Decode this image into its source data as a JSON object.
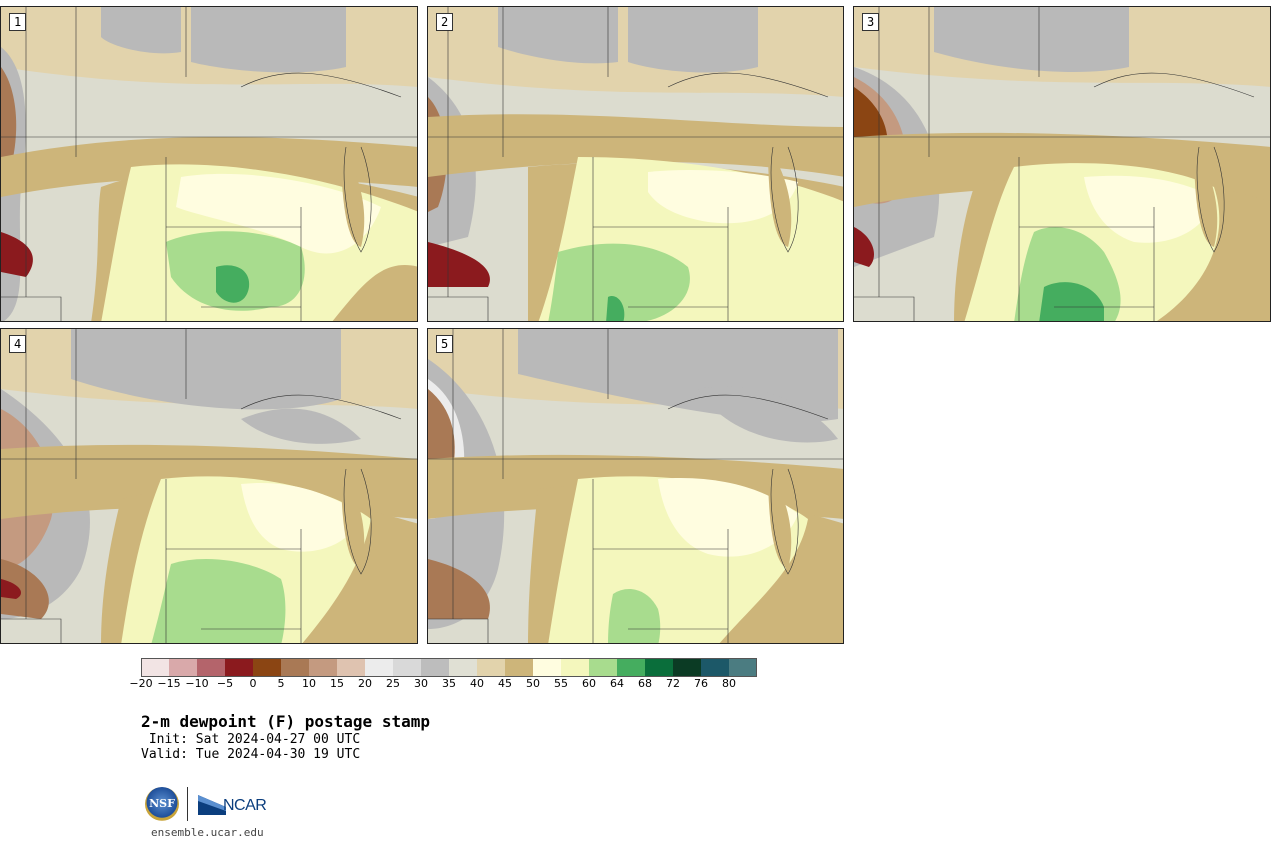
{
  "panels": [
    {
      "label": "1"
    },
    {
      "label": "2"
    },
    {
      "label": "3"
    },
    {
      "label": "4"
    },
    {
      "label": "5"
    }
  ],
  "colorbar": {
    "ticks": [
      "−20",
      "−15",
      "−10",
      "−5",
      "0",
      "5",
      "10",
      "15",
      "20",
      "25",
      "30",
      "35",
      "40",
      "45",
      "50",
      "55",
      "60",
      "64",
      "68",
      "72",
      "76",
      "80"
    ],
    "colors": [
      "#f2e4e4",
      "#d9a9aa",
      "#b4646b",
      "#8b1a1e",
      "#8b4513",
      "#a97955",
      "#c49a80",
      "#dfc3b0",
      "#ececec",
      "#d9d9d9",
      "#bdbdbd",
      "#e0e0d4",
      "#e2d3ac",
      "#cdb57a",
      "#fffde0",
      "#f4f7bd",
      "#a8dc8e",
      "#45ad5f",
      "#0a6e3b",
      "#0b3b24",
      "#1c5868",
      "#4b7c81"
    ]
  },
  "header": {
    "title": "2-m dewpoint (F) postage stamp",
    "init": " Init: Sat 2024-04-27 00 UTC",
    "valid": "Valid: Tue 2024-04-30 19 UTC"
  },
  "footer": {
    "nsf_text": "NSF",
    "ncar_text": "NCAR",
    "url": "ensemble.ucar.edu"
  },
  "map_colors": {
    "light_gray": "#dcdccf",
    "gray": "#b9b9b9",
    "tan": "#e2d3ac",
    "dark_tan": "#cdb57a",
    "brown": "#a97955",
    "dark_red": "#8b1a1e",
    "pale_yellow": "#fffde0",
    "yellow_green": "#f4f7bd",
    "light_green": "#a8dc8e",
    "green": "#45ad5f",
    "light": "#ececec"
  }
}
